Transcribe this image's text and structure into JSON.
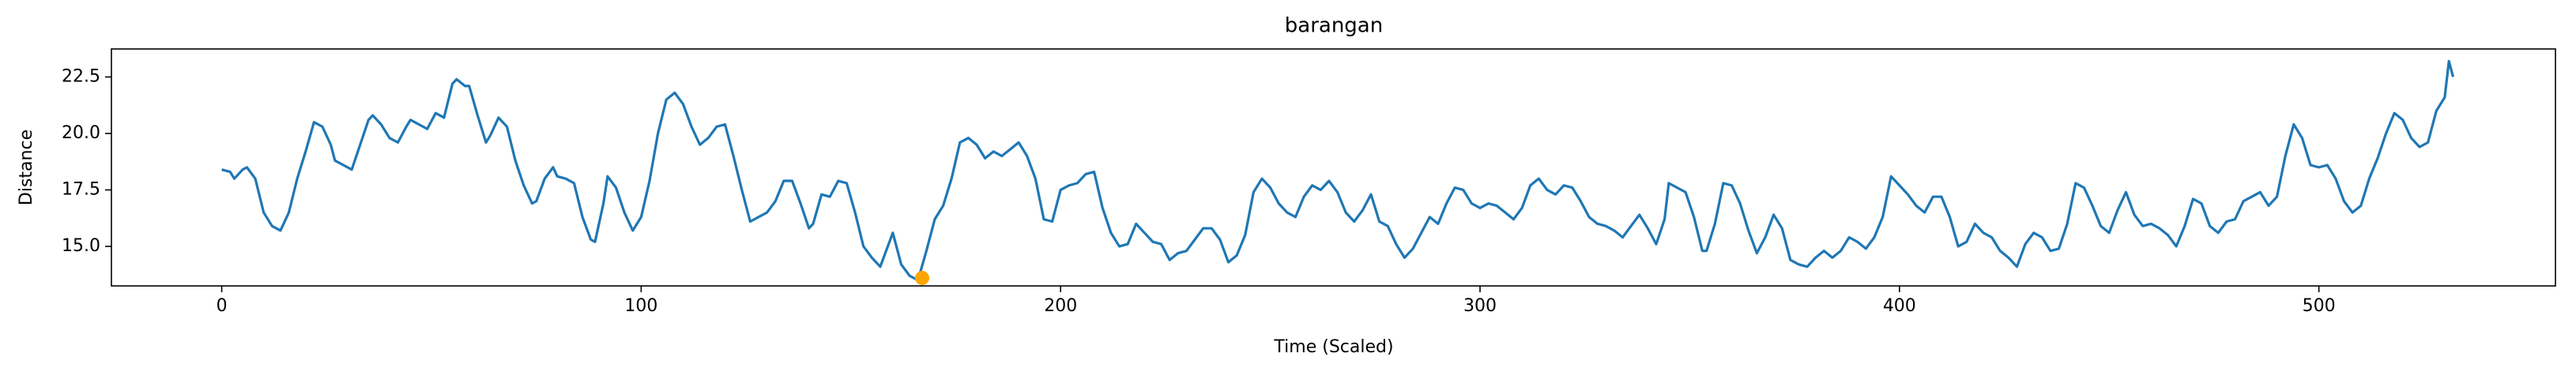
{
  "chart_data": {
    "type": "line",
    "title": "barangan",
    "xlabel": "Time (Scaled)",
    "ylabel": "Distance",
    "xlim": [
      -26.3,
      556.4
    ],
    "ylim": [
      13.25,
      23.74
    ],
    "xticks": [
      0,
      100,
      200,
      300,
      400,
      500
    ],
    "yticks": [
      {
        "value": 15,
        "label": "15.0"
      },
      {
        "value": 17.5,
        "label": "17.5"
      },
      {
        "value": 20,
        "label": "20.0"
      },
      {
        "value": 22.5,
        "label": "22.5"
      }
    ],
    "x": [
      0,
      2,
      3,
      5,
      6,
      8,
      10,
      12,
      14,
      16,
      18,
      20,
      22,
      24,
      26,
      27,
      29,
      31,
      33,
      35,
      36,
      38,
      40,
      42,
      44,
      45,
      47,
      49,
      51,
      53,
      55,
      56,
      58,
      59,
      61,
      63,
      64,
      66,
      68,
      70,
      72,
      74,
      75,
      77,
      79,
      80,
      82,
      84,
      86,
      88,
      89,
      91,
      92,
      94,
      96,
      98,
      100,
      102,
      104,
      106,
      108,
      110,
      112,
      114,
      116,
      118,
      120,
      122,
      124,
      126,
      128,
      130,
      132,
      134,
      136,
      138,
      140,
      141,
      143,
      145,
      147,
      149,
      151,
      153,
      155,
      157,
      159,
      160,
      162,
      164,
      166,
      168,
      170,
      172,
      174,
      176,
      178,
      180,
      182,
      184,
      186,
      188,
      190,
      192,
      194,
      196,
      198,
      200,
      202,
      204,
      206,
      208,
      210,
      212,
      214,
      216,
      218,
      220,
      222,
      224,
      226,
      228,
      230,
      232,
      234,
      236,
      238,
      240,
      242,
      244,
      246,
      248,
      250,
      252,
      254,
      256,
      258,
      260,
      262,
      264,
      266,
      268,
      270,
      272,
      274,
      276,
      278,
      280,
      282,
      284,
      286,
      288,
      290,
      292,
      294,
      296,
      298,
      300,
      302,
      304,
      306,
      308,
      310,
      312,
      314,
      316,
      318,
      320,
      322,
      324,
      326,
      328,
      330,
      332,
      334,
      336,
      338,
      340,
      342,
      344,
      345,
      347,
      349,
      351,
      353,
      354,
      356,
      358,
      360,
      362,
      364,
      366,
      368,
      370,
      372,
      374,
      376,
      378,
      380,
      382,
      384,
      386,
      388,
      390,
      392,
      394,
      396,
      398,
      400,
      402,
      404,
      406,
      408,
      410,
      412,
      414,
      416,
      418,
      420,
      422,
      424,
      426,
      428,
      430,
      432,
      434,
      436,
      438,
      440,
      442,
      444,
      446,
      448,
      450,
      452,
      454,
      456,
      458,
      460,
      462,
      464,
      466,
      468,
      470,
      472,
      474,
      476,
      478,
      480,
      482,
      484,
      486,
      488,
      490,
      492,
      494,
      496,
      498,
      500,
      502,
      504,
      506,
      508,
      510,
      512,
      514,
      516,
      518,
      520,
      522,
      524,
      526,
      528,
      530,
      531,
      532
    ],
    "series": [
      {
        "color": "#1f77b4",
        "values": [
          18.4,
          18.3,
          18.0,
          18.4,
          18.5,
          18.0,
          16.5,
          15.9,
          15.7,
          16.5,
          18.0,
          19.2,
          20.5,
          20.3,
          19.5,
          18.8,
          18.6,
          18.4,
          19.5,
          20.6,
          20.8,
          20.4,
          19.8,
          19.6,
          20.3,
          20.6,
          20.4,
          20.2,
          20.9,
          20.7,
          22.2,
          22.4,
          22.1,
          22.1,
          20.8,
          19.6,
          19.9,
          20.7,
          20.3,
          18.8,
          17.7,
          16.9,
          17.0,
          18.0,
          18.5,
          18.1,
          18.0,
          17.8,
          16.3,
          15.3,
          15.2,
          16.9,
          18.1,
          17.6,
          16.5,
          15.7,
          16.3,
          17.9,
          20.0,
          21.5,
          21.8,
          21.3,
          20.3,
          19.5,
          19.8,
          20.3,
          20.4,
          19.0,
          17.5,
          16.1,
          16.3,
          16.5,
          17.0,
          17.9,
          17.9,
          16.9,
          15.8,
          16.0,
          17.3,
          17.2,
          17.9,
          17.8,
          16.5,
          15.0,
          14.5,
          14.1,
          15.1,
          15.6,
          14.2,
          13.7,
          13.5,
          14.8,
          16.2,
          16.8,
          18.0,
          19.6,
          19.8,
          19.5,
          18.9,
          19.2,
          19.0,
          19.3,
          19.6,
          19.0,
          18.0,
          16.2,
          16.1,
          17.5,
          17.7,
          17.8,
          18.2,
          18.3,
          16.7,
          15.6,
          15.0,
          15.1,
          16.0,
          15.6,
          15.2,
          15.1,
          14.4,
          14.7,
          14.8,
          15.3,
          15.8,
          15.8,
          15.3,
          14.3,
          14.6,
          15.5,
          17.4,
          18.0,
          17.6,
          16.9,
          16.5,
          16.3,
          17.2,
          17.7,
          17.5,
          17.9,
          17.4,
          16.5,
          16.1,
          16.6,
          17.3,
          16.1,
          15.9,
          15.1,
          14.5,
          14.9,
          15.6,
          16.3,
          16.0,
          16.9,
          17.6,
          17.5,
          16.9,
          16.7,
          16.9,
          16.8,
          16.5,
          16.2,
          16.7,
          17.7,
          18.0,
          17.5,
          17.3,
          17.7,
          17.6,
          17.0,
          16.3,
          16.0,
          15.9,
          15.7,
          15.4,
          15.9,
          16.4,
          15.8,
          15.1,
          16.2,
          17.8,
          17.6,
          17.4,
          16.3,
          14.8,
          14.8,
          16.0,
          17.8,
          17.7,
          16.9,
          15.7,
          14.7,
          15.4,
          16.4,
          15.8,
          14.4,
          14.2,
          14.1,
          14.5,
          14.8,
          14.5,
          14.8,
          15.4,
          15.2,
          14.9,
          15.4,
          16.3,
          18.1,
          17.7,
          17.3,
          16.8,
          16.5,
          17.2,
          17.2,
          16.3,
          15.0,
          15.2,
          16.0,
          15.6,
          15.4,
          14.8,
          14.5,
          14.1,
          15.1,
          15.6,
          15.4,
          14.8,
          14.9,
          16.0,
          17.8,
          17.6,
          16.8,
          15.9,
          15.6,
          16.6,
          17.4,
          16.4,
          15.9,
          16.0,
          15.8,
          15.5,
          15.0,
          15.9,
          17.1,
          16.9,
          15.9,
          15.6,
          16.1,
          16.2,
          17.0,
          17.2,
          17.4,
          16.8,
          17.2,
          19.0,
          20.4,
          19.8,
          18.6,
          18.5,
          18.6,
          18.0,
          17.0,
          16.5,
          16.8,
          18.0,
          18.9,
          20.0,
          20.9,
          20.6,
          19.8,
          19.4,
          19.6,
          21.0,
          21.6,
          23.2,
          22.5
        ]
      }
    ],
    "highlight": {
      "x": 167,
      "y": 13.6,
      "color": "#ffa500"
    }
  }
}
